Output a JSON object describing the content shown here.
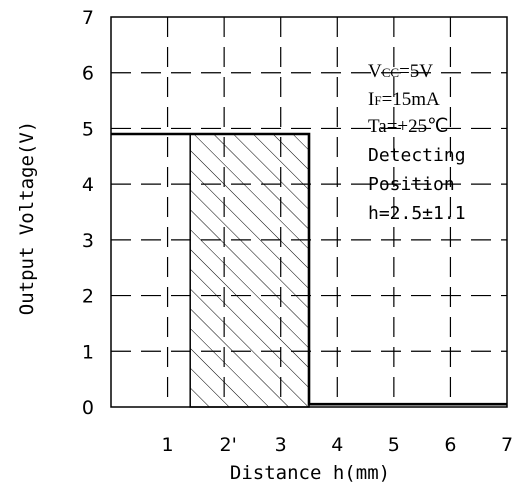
{
  "chart_data": {
    "type": "line",
    "title": "",
    "xlabel": "Distance h(mm)",
    "ylabel": "Output Voltage(V)",
    "xlim": [
      0,
      7
    ],
    "ylim": [
      0,
      7
    ],
    "x_ticks": [
      "1",
      "2'",
      "3",
      "4",
      "5",
      "6",
      "7"
    ],
    "y_ticks": [
      "0",
      "1",
      "2",
      "3",
      "4",
      "5",
      "6",
      "7"
    ],
    "grid": "dashed",
    "series": [
      {
        "x": [
          0,
          3.5,
          3.5,
          7
        ],
        "y": [
          4.9,
          4.9,
          0.05,
          0.05
        ]
      }
    ],
    "hatched_region": {
      "x": [
        1.4,
        3.5
      ],
      "y": [
        0,
        4.9
      ]
    },
    "annotations": [
      {
        "lines": [
          "Vcc=5V",
          "IF=15mA",
          "Ta=+25℃",
          "Detecting",
          "Position",
          "h=2.5±1.1"
        ]
      }
    ]
  },
  "annotation_text": {
    "l1_main": "V",
    "l1_sub": "CC",
    "l1_rest": "=5V",
    "l2_main": "I",
    "l2_sub": "F",
    "l2_rest": "=15mA",
    "l3": "Ta=+25℃",
    "l4": "Detecting",
    "l5": "Position",
    "l6": "h=2.5±1.1"
  }
}
